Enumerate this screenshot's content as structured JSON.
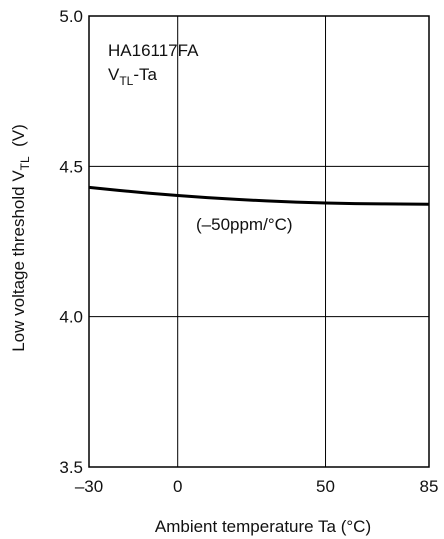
{
  "chart_data": {
    "type": "line",
    "title_line1": "HA16117FA",
    "title_line2": {
      "main": "V",
      "sub": "TL",
      "suffix": "-Ta"
    },
    "xlabel": "Ambient temperature  Ta  (°C)",
    "ylabel": {
      "prefix": "Low voltage threshold  V",
      "sub": "TL",
      "suffix": "  (V)"
    },
    "xlim": [
      -30,
      85
    ],
    "ylim": [
      3.5,
      5.0
    ],
    "x_ticks": [
      -30,
      0,
      50,
      85
    ],
    "x_tick_labels": [
      "–30",
      "0",
      "50",
      "85"
    ],
    "y_ticks": [
      3.5,
      4.0,
      4.5,
      5.0
    ],
    "y_tick_labels": [
      "3.5",
      "4.0",
      "4.5",
      "5.0"
    ],
    "x_grid": [
      0,
      50
    ],
    "y_grid": [
      4.0,
      4.5
    ],
    "annotation": "(–50ppm/°C)",
    "series": [
      {
        "x": [
          -30,
          -20,
          -10,
          0,
          10,
          20,
          30,
          40,
          50,
          60,
          70,
          85
        ],
        "values": [
          4.43,
          4.42,
          4.411,
          4.403,
          4.396,
          4.39,
          4.385,
          4.381,
          4.378,
          4.376,
          4.375,
          4.374
        ],
        "color": "#000000"
      }
    ]
  }
}
